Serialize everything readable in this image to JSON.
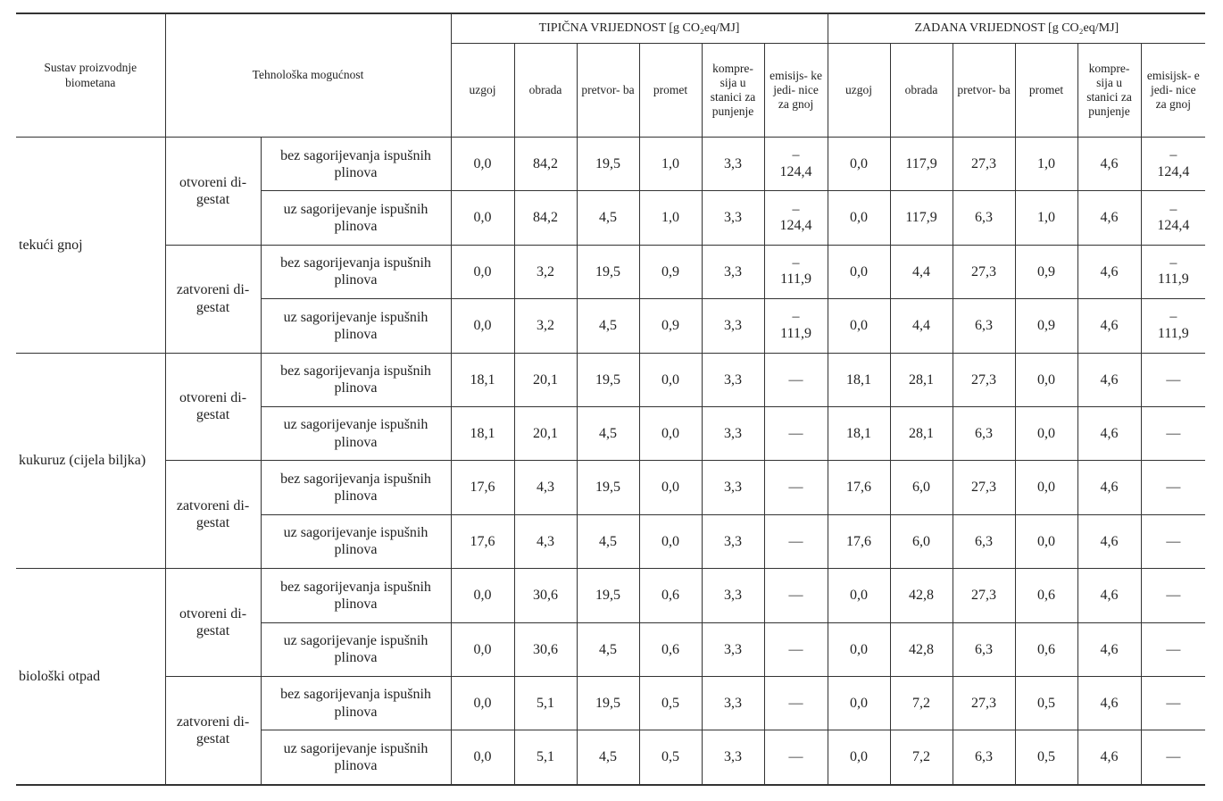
{
  "header": {
    "system": "Sustav proizvodnje biometana",
    "technology": "Tehnološka mogućnost",
    "typical_group": "TIPIČNA VRIJEDNOST [g CO₂eq/MJ]",
    "default_group": "ZADANA VRIJEDNOST [g CO₂eq/MJ]",
    "typical_cols": [
      "uzgoj",
      "obrada",
      "pretvor- ba",
      "promet",
      "kompre- sija u stanici za punjenje",
      "emisijs- ke jedi- nice za gnoj"
    ],
    "default_cols": [
      "uzgoj",
      "obrada",
      "pretvor- ba",
      "promet",
      "kompre- sija u stanici za punjenje",
      "emisijsk- e jedi- nice za gnoj"
    ]
  },
  "systems": [
    {
      "name": "tekući gnoj",
      "digestates": [
        {
          "name": "otvoreni di- gestat",
          "options": [
            {
              "name": "bez sagorijevanja ispušnih plinova",
              "typical": [
                "0,0",
                "84,2",
                "19,5",
                "1,0",
                "3,3",
                "– 124,4"
              ],
              "default": [
                "0,0",
                "117,9",
                "27,3",
                "1,0",
                "4,6",
                "– 124,4"
              ]
            },
            {
              "name": "uz sagorijevanje ispušnih plinova",
              "typical": [
                "0,0",
                "84,2",
                "4,5",
                "1,0",
                "3,3",
                "– 124,4"
              ],
              "default": [
                "0,0",
                "117,9",
                "6,3",
                "1,0",
                "4,6",
                "– 124,4"
              ]
            }
          ]
        },
        {
          "name": "zatvoreni di- gestat",
          "options": [
            {
              "name": "bez sagorijevanja ispušnih plinova",
              "typical": [
                "0,0",
                "3,2",
                "19,5",
                "0,9",
                "3,3",
                "– 111,9"
              ],
              "default": [
                "0,0",
                "4,4",
                "27,3",
                "0,9",
                "4,6",
                "– 111,9"
              ]
            },
            {
              "name": "uz sagorijevanje ispušnih plinova",
              "typical": [
                "0,0",
                "3,2",
                "4,5",
                "0,9",
                "3,3",
                "– 111,9"
              ],
              "default": [
                "0,0",
                "4,4",
                "6,3",
                "0,9",
                "4,6",
                "– 111,9"
              ]
            }
          ]
        }
      ]
    },
    {
      "name": "kukuruz (cijela biljka)",
      "digestates": [
        {
          "name": "otvoreni di- gestat",
          "options": [
            {
              "name": "bez sagorijevanja ispušnih plinova",
              "typical": [
                "18,1",
                "20,1",
                "19,5",
                "0,0",
                "3,3",
                "—"
              ],
              "default": [
                "18,1",
                "28,1",
                "27,3",
                "0,0",
                "4,6",
                "—"
              ]
            },
            {
              "name": "uz sagorijevanje ispušnih plinova",
              "typical": [
                "18,1",
                "20,1",
                "4,5",
                "0,0",
                "3,3",
                "—"
              ],
              "default": [
                "18,1",
                "28,1",
                "6,3",
                "0,0",
                "4,6",
                "—"
              ]
            }
          ]
        },
        {
          "name": "zatvoreni di- gestat",
          "options": [
            {
              "name": "bez sagorijevanja ispušnih plinova",
              "typical": [
                "17,6",
                "4,3",
                "19,5",
                "0,0",
                "3,3",
                "—"
              ],
              "default": [
                "17,6",
                "6,0",
                "27,3",
                "0,0",
                "4,6",
                "—"
              ]
            },
            {
              "name": "uz sagorijevanje ispušnih plinova",
              "typical": [
                "17,6",
                "4,3",
                "4,5",
                "0,0",
                "3,3",
                "—"
              ],
              "default": [
                "17,6",
                "6,0",
                "6,3",
                "0,0",
                "4,6",
                "—"
              ]
            }
          ]
        }
      ]
    },
    {
      "name": "biološki otpad",
      "digestates": [
        {
          "name": "otvoreni di- gestat",
          "options": [
            {
              "name": "bez sagorijevanja ispušnih plinova",
              "typical": [
                "0,0",
                "30,6",
                "19,5",
                "0,6",
                "3,3",
                "—"
              ],
              "default": [
                "0,0",
                "42,8",
                "27,3",
                "0,6",
                "4,6",
                "—"
              ]
            },
            {
              "name": "uz sagorijevanje ispušnih plinova",
              "typical": [
                "0,0",
                "30,6",
                "4,5",
                "0,6",
                "3,3",
                "—"
              ],
              "default": [
                "0,0",
                "42,8",
                "6,3",
                "0,6",
                "4,6",
                "—"
              ]
            }
          ]
        },
        {
          "name": "zatvoreni di- gestat",
          "options": [
            {
              "name": "bez sagorijevanja ispušnih plinova",
              "typical": [
                "0,0",
                "5,1",
                "19,5",
                "0,5",
                "3,3",
                "—"
              ],
              "default": [
                "0,0",
                "7,2",
                "27,3",
                "0,5",
                "4,6",
                "—"
              ]
            },
            {
              "name": "uz sagorijevanje ispušnih plinova",
              "typical": [
                "0,0",
                "5,1",
                "4,5",
                "0,5",
                "3,3",
                "—"
              ],
              "default": [
                "0,0",
                "7,2",
                "6,3",
                "0,5",
                "4,6",
                "—"
              ]
            }
          ]
        }
      ]
    }
  ]
}
